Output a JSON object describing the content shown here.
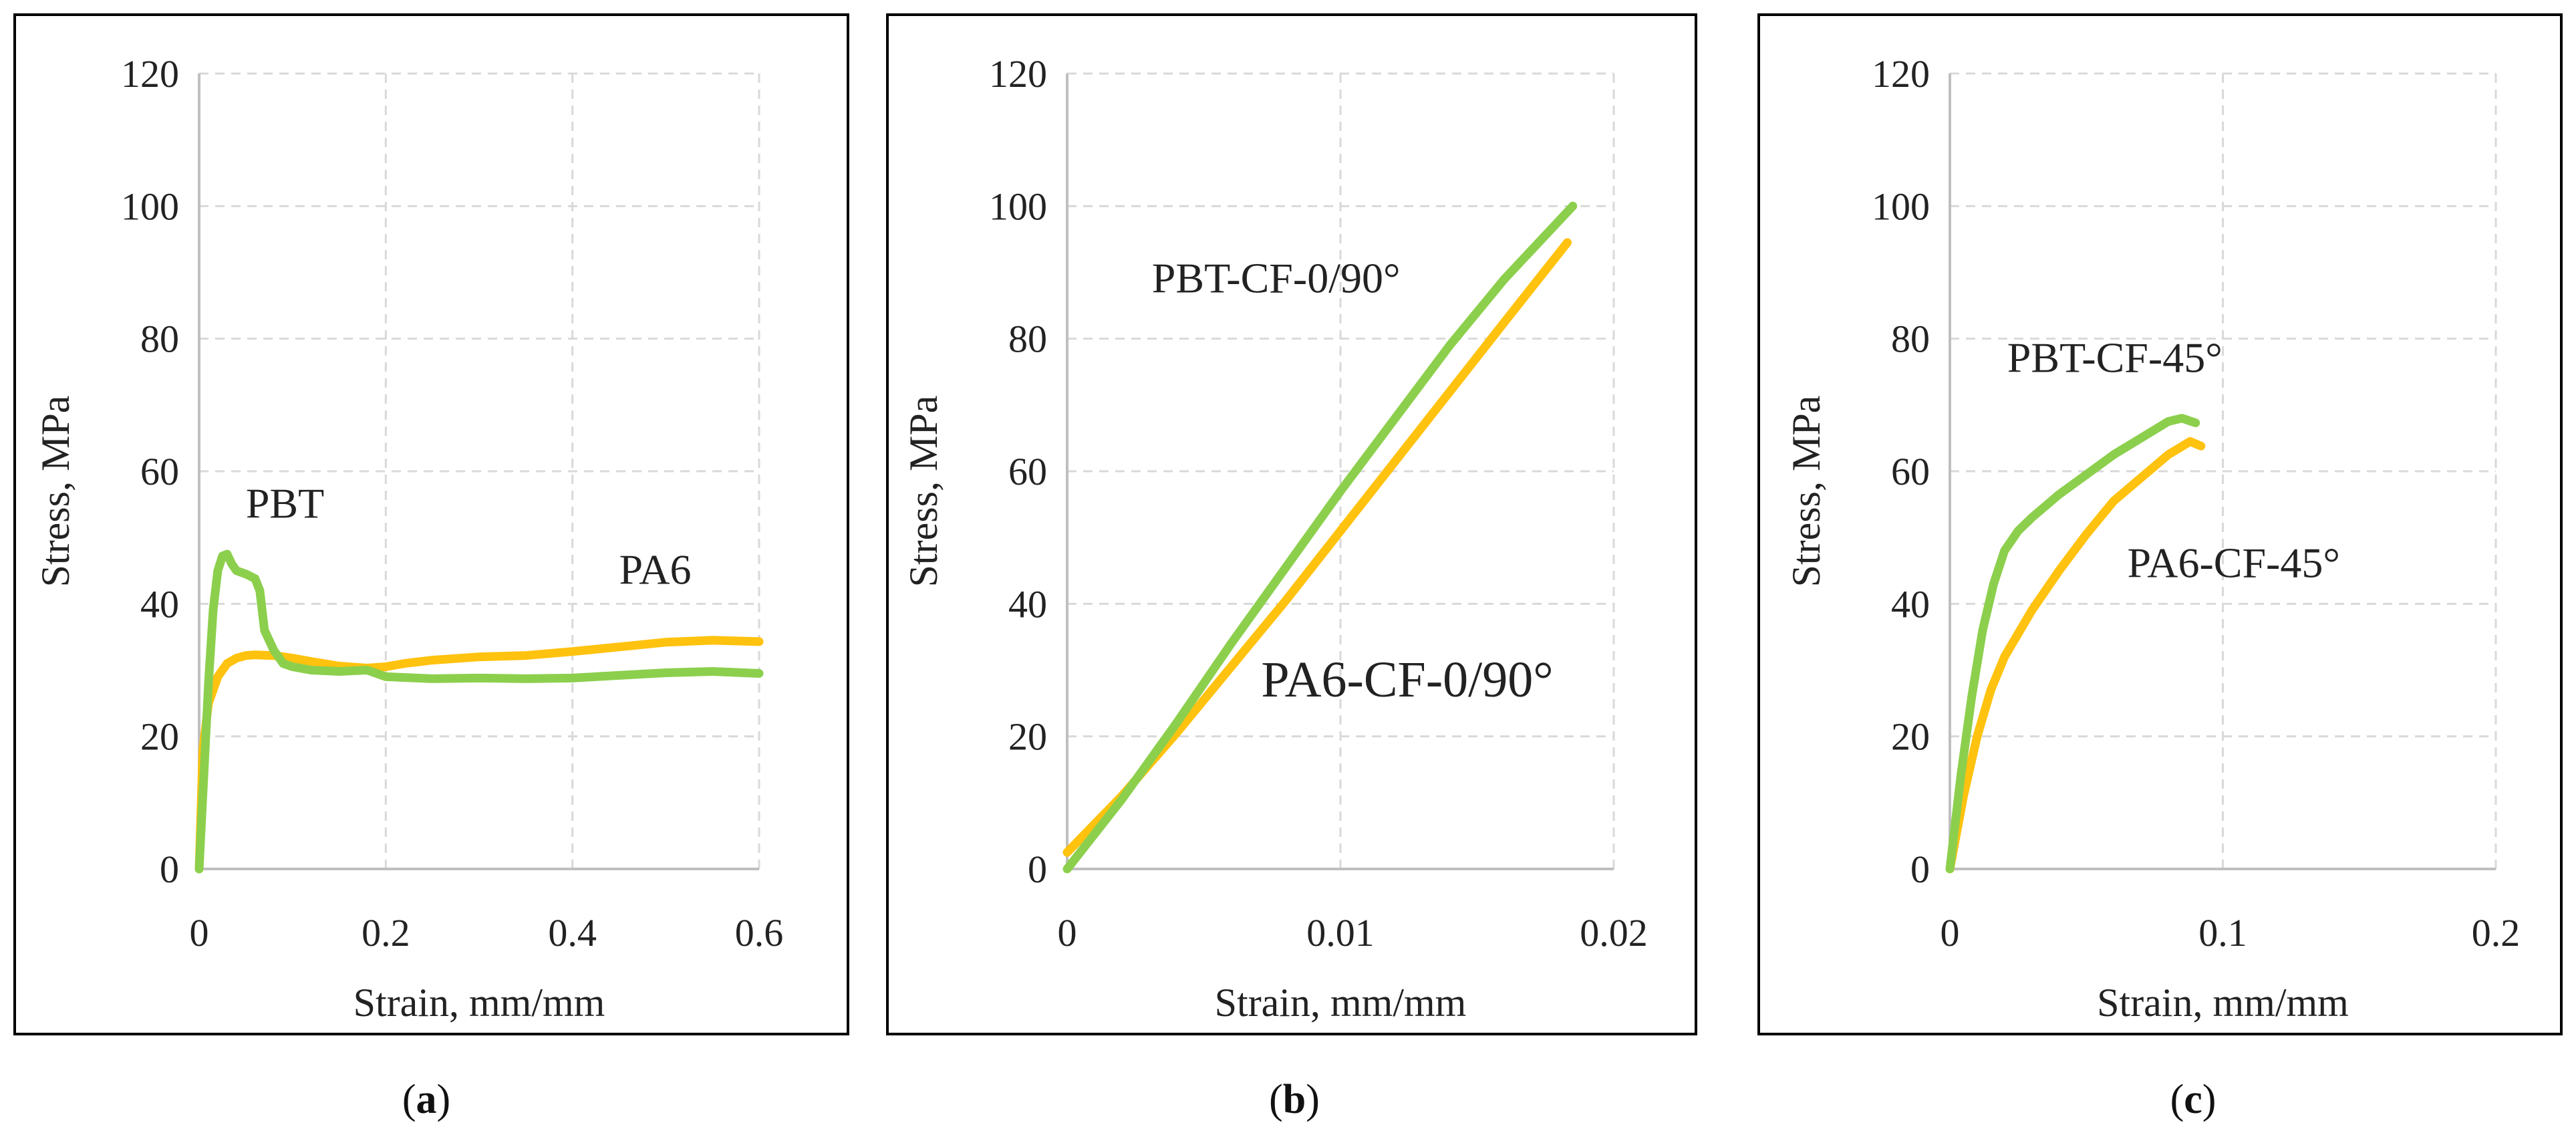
{
  "colors": {
    "PBT": "#8ccf4d",
    "PA6": "#ffc20e"
  },
  "chart_data": [
    {
      "type": "line",
      "caption": {
        "open": "(",
        "letter": "a",
        "close": ")"
      },
      "xlabel": "Strain, mm/mm",
      "ylabel": "Stress, MPa",
      "xlim": [
        0,
        0.6
      ],
      "ylim": [
        0,
        120
      ],
      "xticks": [
        0,
        0.2,
        0.4,
        0.6
      ],
      "xtick_labels": [
        "0",
        "0.2",
        "0.4",
        "0.6"
      ],
      "yticks": [
        0,
        20,
        40,
        60,
        80,
        100,
        120
      ],
      "ytick_labels": [
        "0",
        "20",
        "40",
        "60",
        "80",
        "100",
        "120"
      ],
      "annotations": [
        {
          "text": "PBT",
          "x": 0.05,
          "y": 53,
          "size": "normal"
        },
        {
          "text": "PA6",
          "x": 0.45,
          "y": 43,
          "size": "normal"
        }
      ],
      "series": [
        {
          "name": "PA6",
          "color_key": "PA6",
          "x": [
            0,
            0.004,
            0.01,
            0.02,
            0.03,
            0.04,
            0.05,
            0.06,
            0.08,
            0.1,
            0.12,
            0.15,
            0.18,
            0.2,
            0.22,
            0.25,
            0.3,
            0.35,
            0.4,
            0.45,
            0.5,
            0.55,
            0.6
          ],
          "y": [
            0,
            18,
            25,
            29,
            31,
            31.8,
            32.2,
            32.3,
            32.2,
            31.8,
            31.3,
            30.6,
            30.3,
            30.5,
            31,
            31.5,
            32,
            32.2,
            32.8,
            33.5,
            34.2,
            34.5,
            34.3
          ]
        },
        {
          "name": "PBT",
          "color_key": "PBT",
          "x": [
            0,
            0.005,
            0.01,
            0.015,
            0.02,
            0.025,
            0.03,
            0.035,
            0.04,
            0.05,
            0.06,
            0.065,
            0.07,
            0.08,
            0.09,
            0.1,
            0.12,
            0.15,
            0.18,
            0.2,
            0.25,
            0.3,
            0.35,
            0.4,
            0.45,
            0.5,
            0.55,
            0.6
          ],
          "y": [
            0,
            14,
            28,
            39,
            45,
            47.2,
            47.5,
            46,
            45,
            44.5,
            43.8,
            42,
            36,
            33,
            31,
            30.5,
            30,
            29.8,
            30,
            29,
            28.7,
            28.8,
            28.7,
            28.8,
            29.2,
            29.6,
            29.8,
            29.5
          ]
        }
      ]
    },
    {
      "type": "line",
      "caption": {
        "open": "(",
        "letter": "b",
        "close": ")"
      },
      "xlabel": "Strain, mm/mm",
      "ylabel": "Stress, MPa",
      "xlim": [
        0,
        0.02
      ],
      "ylim": [
        0,
        120
      ],
      "xticks": [
        0,
        0.01,
        0.02
      ],
      "xtick_labels": [
        "0",
        "0.01",
        "0.02"
      ],
      "yticks": [
        0,
        20,
        40,
        60,
        80,
        100,
        120
      ],
      "ytick_labels": [
        "0",
        "20",
        "40",
        "60",
        "80",
        "100",
        "120"
      ],
      "annotations": [
        {
          "text": "PBT-CF-0/90°",
          "x": 0.0031,
          "y": 87,
          "size": "normal"
        },
        {
          "text": "PA6-CF-0/90°",
          "x": 0.0071,
          "y": 26,
          "size": "large"
        }
      ],
      "series": [
        {
          "name": "PA6-CF-0/90°",
          "color_key": "PA6",
          "x": [
            0,
            0.002,
            0.004,
            0.006,
            0.008,
            0.01,
            0.012,
            0.014,
            0.016,
            0.0183
          ],
          "y": [
            2.5,
            11,
            20.5,
            30.5,
            40.5,
            51,
            61.5,
            72,
            82.5,
            94.5
          ]
        },
        {
          "name": "PBT-CF-0/90°",
          "color_key": "PBT",
          "x": [
            0,
            0.002,
            0.004,
            0.006,
            0.008,
            0.01,
            0.012,
            0.014,
            0.016,
            0.0185
          ],
          "y": [
            0,
            10.5,
            22,
            34,
            45.5,
            57,
            68,
            79,
            89,
            100
          ]
        }
      ]
    },
    {
      "type": "line",
      "caption": {
        "open": "(",
        "letter": "c",
        "close": ")"
      },
      "xlabel": "Strain, mm/mm",
      "ylabel": "Stress, MPa",
      "xlim": [
        0,
        0.2
      ],
      "ylim": [
        0,
        120
      ],
      "xticks": [
        0,
        0.1,
        0.2
      ],
      "xtick_labels": [
        "0",
        "0.1",
        "0.2"
      ],
      "yticks": [
        0,
        20,
        40,
        60,
        80,
        100,
        120
      ],
      "ytick_labels": [
        "0",
        "20",
        "40",
        "60",
        "80",
        "100",
        "120"
      ],
      "annotations": [
        {
          "text": "PBT-CF-45°",
          "x": 0.021,
          "y": 75,
          "size": "normal"
        },
        {
          "text": "PA6-CF-45°",
          "x": 0.065,
          "y": 44,
          "size": "normal"
        }
      ],
      "series": [
        {
          "name": "PA6-CF-45°",
          "color_key": "PA6",
          "x": [
            0,
            0.005,
            0.01,
            0.015,
            0.02,
            0.03,
            0.04,
            0.05,
            0.06,
            0.07,
            0.08,
            0.088,
            0.092
          ],
          "y": [
            0,
            11,
            20,
            27,
            32,
            39,
            45,
            50.5,
            55.5,
            59,
            62.5,
            64.5,
            63.8
          ]
        },
        {
          "name": "PBT-CF-45°",
          "color_key": "PBT",
          "x": [
            0,
            0.004,
            0.008,
            0.012,
            0.016,
            0.02,
            0.025,
            0.03,
            0.04,
            0.05,
            0.06,
            0.07,
            0.08,
            0.085,
            0.09
          ],
          "y": [
            0,
            14,
            26,
            36,
            43,
            48,
            51,
            53,
            56.5,
            59.5,
            62.5,
            65,
            67.5,
            68,
            67.3
          ]
        }
      ]
    }
  ]
}
